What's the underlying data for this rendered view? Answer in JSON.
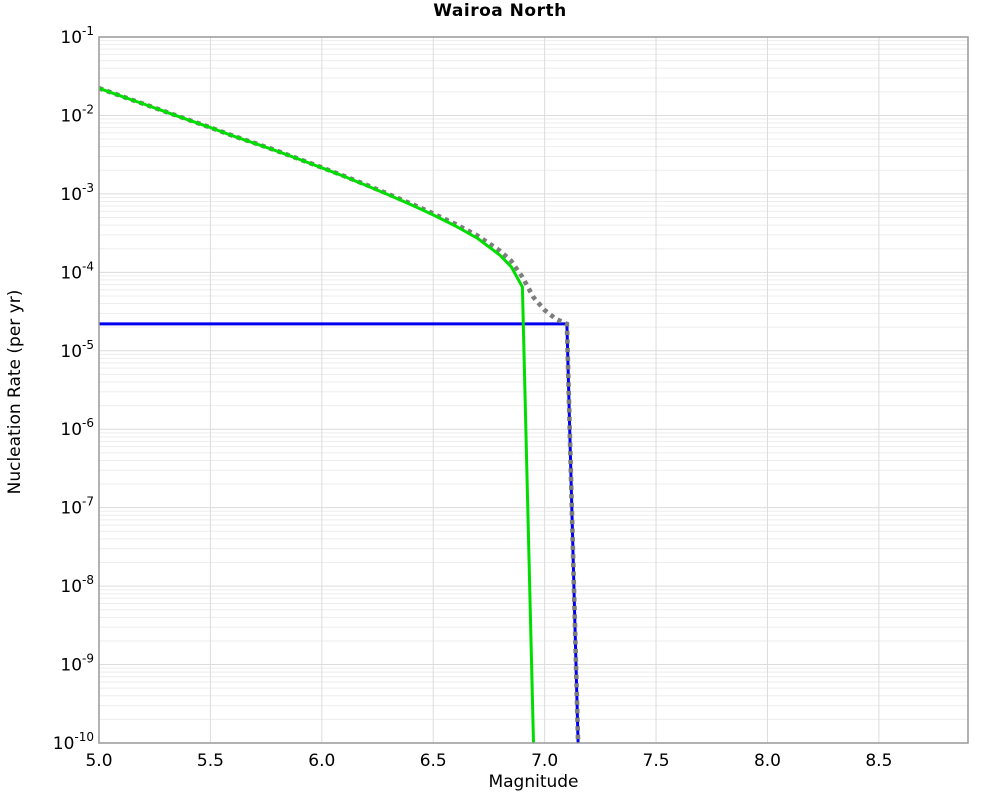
{
  "title": "Wairoa North",
  "chart_data": {
    "type": "line",
    "title": "Wairoa North",
    "xlabel": "Magnitude",
    "ylabel": "Nucleation Rate (per yr)",
    "xlim": [
      5.0,
      8.9
    ],
    "ylim_exp": [
      -10,
      -1
    ],
    "x_scale": "linear",
    "y_scale": "log",
    "grid": "major and minor log gridlines on, light gray",
    "legend_position": "none",
    "x_tick_values": [
      5.0,
      5.5,
      6.0,
      6.5,
      7.0,
      7.5,
      8.0,
      8.5
    ],
    "x_tick_labels": [
      "5.0",
      "5.5",
      "6.0",
      "6.5",
      "7.0",
      "7.5",
      "8.0",
      "8.5"
    ],
    "x_gridline_values": [
      5.5,
      6.0,
      6.5,
      7.0,
      7.5,
      8.0,
      8.5
    ],
    "y_tick_exponents": [
      -1,
      -2,
      -3,
      -4,
      -5,
      -6,
      -7,
      -8,
      -9,
      -10
    ],
    "y_tick_base": "10",
    "colors": {
      "total_dotted": "#7d7d7d",
      "gutenberg_richter": "#00dd00",
      "characteristic": "#0000ee",
      "plot_border": "#999999",
      "major_grid": "#dcdcdc",
      "minor_grid": "#ededed",
      "background": "#ffffff"
    },
    "series": [
      {
        "name": "total-mfd-dotted",
        "style": "dotted",
        "color": "#7d7d7d",
        "width": 4.6,
        "points": [
          [
            5.0,
            0.022222
          ],
          [
            5.1,
            0.017622
          ],
          [
            5.2,
            0.014022
          ],
          [
            5.3,
            0.011122
          ],
          [
            5.4,
            0.008822
          ],
          [
            5.5,
            0.007022
          ],
          [
            5.6,
            0.005522
          ],
          [
            5.7,
            0.004422
          ],
          [
            5.8,
            0.003522
          ],
          [
            5.9,
            0.002772
          ],
          [
            6.0,
            0.002172
          ],
          [
            6.1,
            0.001692
          ],
          [
            6.2,
            0.001302
          ],
          [
            6.3,
            0.000992
          ],
          [
            6.4,
            0.000752
          ],
          [
            6.5,
            0.000562
          ],
          [
            6.6,
            0.000412
          ],
          [
            6.7,
            0.000292
          ],
          [
            6.8,
            0.000187
          ],
          [
            6.85,
            0.00014
          ],
          [
            6.9,
            8.7e-05
          ],
          [
            6.95,
            4.8e-05
          ],
          [
            7.0,
            3.3e-05
          ],
          [
            7.05,
            2.55e-05
          ],
          [
            7.1,
            2.2e-05
          ],
          [
            7.15,
            1e-10
          ]
        ]
      },
      {
        "name": "characteristic-mfd",
        "style": "solid",
        "color": "#0000ee",
        "width": 3,
        "points": [
          [
            5.0,
            2.2e-05
          ],
          [
            7.1,
            2.2e-05
          ],
          [
            7.15,
            1e-10
          ]
        ]
      },
      {
        "name": "gutenberg-richter-mfd",
        "style": "solid",
        "color": "#00dd00",
        "width": 3,
        "points": [
          [
            5.0,
            0.0222
          ],
          [
            5.1,
            0.0176
          ],
          [
            5.2,
            0.014
          ],
          [
            5.3,
            0.0111
          ],
          [
            5.4,
            0.0088
          ],
          [
            5.5,
            0.007
          ],
          [
            5.6,
            0.0055
          ],
          [
            5.7,
            0.0044
          ],
          [
            5.8,
            0.0035
          ],
          [
            5.9,
            0.00275
          ],
          [
            6.0,
            0.00215
          ],
          [
            6.1,
            0.00167
          ],
          [
            6.2,
            0.00128
          ],
          [
            6.3,
            0.00097
          ],
          [
            6.4,
            0.00073
          ],
          [
            6.5,
            0.00054
          ],
          [
            6.6,
            0.00039
          ],
          [
            6.7,
            0.00027
          ],
          [
            6.8,
            0.000165
          ],
          [
            6.85,
            0.000118
          ],
          [
            6.9,
            6.5e-05
          ],
          [
            6.95,
            1e-10
          ]
        ]
      }
    ]
  }
}
